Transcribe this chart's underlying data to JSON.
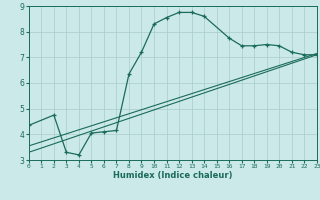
{
  "background_color": "#cce9e9",
  "line_color": "#1a6b5a",
  "grid_color": "#aacccc",
  "xlim": [
    0,
    23
  ],
  "ylim": [
    3,
    9
  ],
  "xticks": [
    0,
    1,
    2,
    3,
    4,
    5,
    6,
    7,
    8,
    9,
    10,
    11,
    12,
    13,
    14,
    15,
    16,
    17,
    18,
    19,
    20,
    21,
    22,
    23
  ],
  "yticks": [
    3,
    4,
    5,
    6,
    7,
    8,
    9
  ],
  "xlabel": "Humidex (Indice chaleur)",
  "curve1_x": [
    0,
    2,
    3,
    4,
    5,
    6,
    7,
    8,
    9,
    10,
    11,
    12,
    13,
    14,
    16,
    17,
    18,
    19,
    20,
    21,
    22,
    23
  ],
  "curve1_y": [
    4.35,
    4.75,
    3.3,
    3.2,
    4.05,
    4.1,
    4.15,
    6.35,
    7.2,
    8.3,
    8.55,
    8.75,
    8.75,
    8.6,
    7.75,
    7.45,
    7.45,
    7.5,
    7.45,
    7.2,
    7.1,
    7.1
  ],
  "curve2_x": [
    0,
    23
  ],
  "curve2_y": [
    3.3,
    7.1
  ],
  "curve3_x": [
    0,
    23
  ],
  "curve3_y": [
    3.55,
    7.15
  ]
}
